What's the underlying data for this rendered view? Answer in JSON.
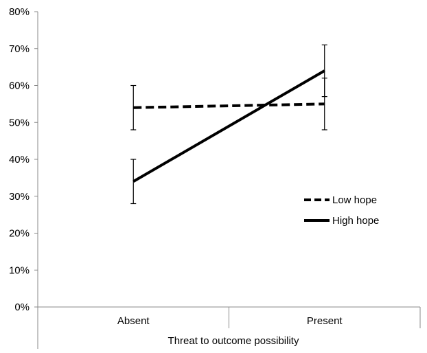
{
  "chart_data": {
    "type": "line",
    "categories": [
      "Absent",
      "Present"
    ],
    "xlabel": "Threat to outcome possibility",
    "ylabel": "",
    "ylim": [
      0,
      0.8
    ],
    "yticks": [
      0,
      0.1,
      0.2,
      0.3,
      0.4,
      0.5,
      0.6,
      0.7,
      0.8
    ],
    "ytick_labels": [
      "0%",
      "10%",
      "20%",
      "30%",
      "40%",
      "50%",
      "60%",
      "70%",
      "80%"
    ],
    "grid": false,
    "legend_position": "right",
    "series": [
      {
        "name": "Low hope",
        "style": "dashed",
        "color": "#000000",
        "values": [
          0.54,
          0.55
        ],
        "error_low": [
          0.48,
          0.48
        ],
        "error_high": [
          0.6,
          0.62
        ]
      },
      {
        "name": "High hope",
        "style": "solid",
        "color": "#000000",
        "values": [
          0.34,
          0.64
        ],
        "error_low": [
          0.28,
          0.57
        ],
        "error_high": [
          0.4,
          0.71
        ]
      }
    ]
  }
}
